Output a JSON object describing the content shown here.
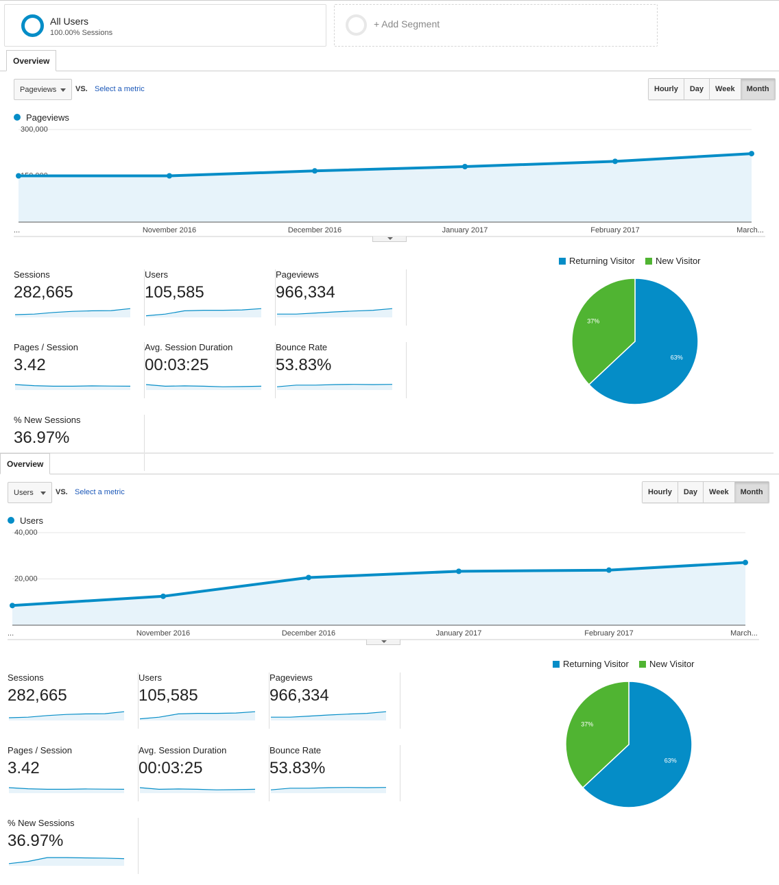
{
  "segments": [
    {
      "title": "All Users",
      "subtitle": "100.00% Sessions"
    },
    {
      "title": "+ Add Segment"
    }
  ],
  "colors": {
    "primary": "#058dc7",
    "secondary": "#50b432",
    "area_fill": "#e7f3fa",
    "link": "#1a57b8"
  },
  "panels": [
    {
      "tab": "Overview",
      "metric": "Pageviews",
      "vs": "VS.",
      "select_metric": "Select a metric",
      "time_buttons": [
        "Hourly",
        "Day",
        "Week",
        "Month"
      ],
      "active_button": "Month",
      "legend": "Pageviews",
      "y_ticks": [
        "300,000",
        "150,000"
      ],
      "x_ticks": [
        "...",
        "November 2016",
        "December 2016",
        "January 2017",
        "February 2017",
        "March..."
      ],
      "scorecards": [
        {
          "label": "Sessions",
          "value": "282,665"
        },
        {
          "label": "Users",
          "value": "105,585"
        },
        {
          "label": "Pageviews",
          "value": "966,334"
        },
        {
          "label": "Pages / Session",
          "value": "3.42"
        },
        {
          "label": "Avg. Session Duration",
          "value": "00:03:25"
        },
        {
          "label": "Bounce Rate",
          "value": "53.83%"
        },
        {
          "label": "% New Sessions",
          "value": "36.97%"
        }
      ],
      "pie_legend": [
        "Returning Visitor",
        "New Visitor"
      ],
      "pie_labels": [
        "63%",
        "37%"
      ]
    },
    {
      "tab": "Overview",
      "metric": "Users",
      "vs": "VS.",
      "select_metric": "Select a metric",
      "time_buttons": [
        "Hourly",
        "Day",
        "Week",
        "Month"
      ],
      "active_button": "Month",
      "legend": "Users",
      "y_ticks": [
        "40,000",
        "20,000"
      ],
      "x_ticks": [
        "...",
        "November 2016",
        "December 2016",
        "January 2017",
        "February 2017",
        "March..."
      ],
      "scorecards": [
        {
          "label": "Sessions",
          "value": "282,665"
        },
        {
          "label": "Users",
          "value": "105,585"
        },
        {
          "label": "Pageviews",
          "value": "966,334"
        },
        {
          "label": "Pages / Session",
          "value": "3.42"
        },
        {
          "label": "Avg. Session Duration",
          "value": "00:03:25"
        },
        {
          "label": "Bounce Rate",
          "value": "53.83%"
        },
        {
          "label": "% New Sessions",
          "value": "36.97%"
        }
      ],
      "pie_legend": [
        "Returning Visitor",
        "New Visitor"
      ],
      "pie_labels": [
        "63%",
        "37%"
      ]
    }
  ],
  "chart_data": [
    {
      "type": "line",
      "x": [
        "...",
        "November 2016",
        "December 2016",
        "January 2017",
        "February 2017",
        "March..."
      ],
      "series": [
        {
          "name": "Pageviews",
          "values": [
            150000,
            150000,
            166000,
            180000,
            197000,
            222000
          ]
        }
      ],
      "ylim": [
        0,
        300000
      ],
      "grid": true
    },
    {
      "type": "line",
      "x": [
        "...",
        "November 2016",
        "December 2016",
        "January 2017",
        "February 2017",
        "March..."
      ],
      "series": [
        {
          "name": "Users",
          "values": [
            8500,
            12500,
            20600,
            23300,
            23800,
            27100
          ]
        }
      ],
      "ylim": [
        0,
        40000
      ],
      "grid": true
    },
    {
      "type": "pie",
      "categories": [
        "Returning Visitor",
        "New Visitor"
      ],
      "values": [
        63,
        37
      ]
    },
    {
      "type": "pie",
      "categories": [
        "Returning Visitor",
        "New Visitor"
      ],
      "values": [
        63,
        37
      ]
    }
  ]
}
